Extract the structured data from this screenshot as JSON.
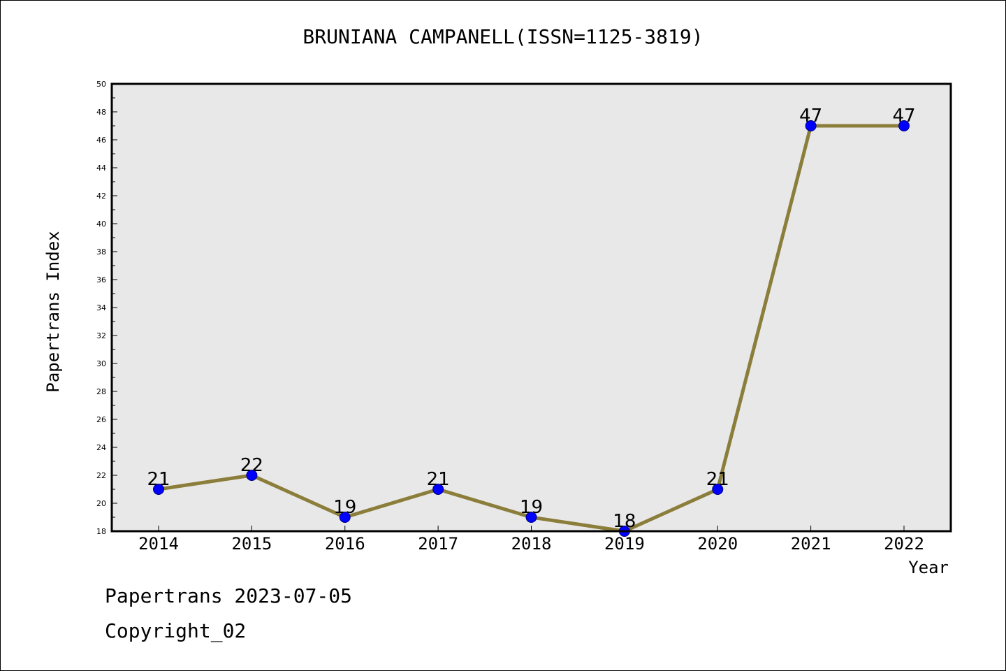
{
  "title": "BRUNIANA CAMPANELL(ISSN=1125-3819)",
  "footer": {
    "line1": "Papertrans 2023-07-05",
    "line2": "Copyright_02"
  },
  "colors": {
    "plot_background": "#e8e8e8",
    "line": "#8b7d3a",
    "marker": "#0000ff",
    "marker_edge": "#000080"
  },
  "chart_data": {
    "type": "line",
    "title": "BRUNIANA CAMPANELL(ISSN=1125-3819)",
    "xlabel": "Year",
    "ylabel": "Papertrans Index",
    "x": [
      "2014",
      "2015",
      "2016",
      "2017",
      "2018",
      "2019",
      "2020",
      "2021",
      "2022"
    ],
    "series": [
      {
        "values": [
          21,
          22,
          19,
          21,
          19,
          18,
          21,
          47,
          47
        ]
      }
    ],
    "data_labels": [
      "21",
      "22",
      "19",
      "21",
      "19",
      "18",
      "21",
      "47",
      "47"
    ],
    "ylim": [
      18,
      50
    ],
    "yticks": [
      "18",
      "20",
      "22",
      "24",
      "26",
      "28",
      "30",
      "32",
      "34",
      "36",
      "38",
      "40",
      "42",
      "44",
      "46",
      "48",
      "50"
    ],
    "grid": false,
    "legend": "none"
  }
}
